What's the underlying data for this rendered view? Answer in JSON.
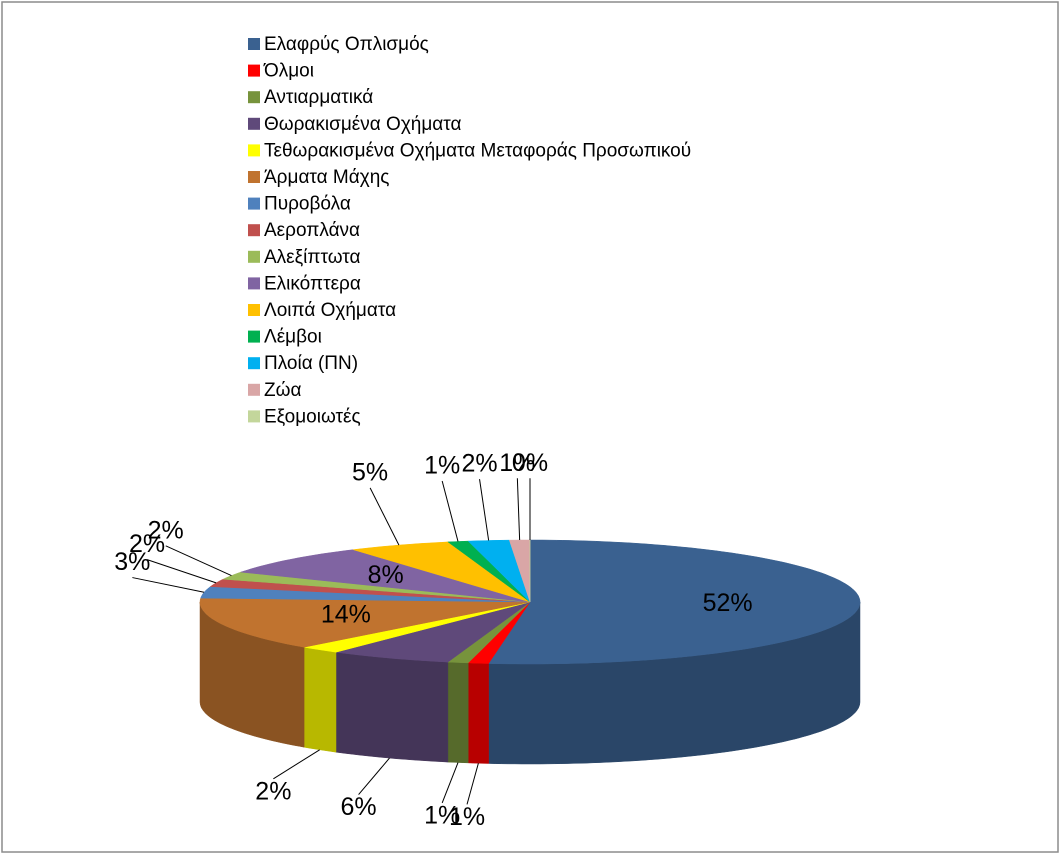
{
  "chart_data": {
    "type": "pie",
    "categories": [
      "Ελαφρύς Οπλισμός",
      "Όλμοι",
      "Αντιαρματικά",
      "Θωρακισμένα Οχήματα",
      "Τεθωρακισμένα Οχήματα Μεταφοράς Προσωπικού",
      "Άρματα Μάχης",
      "Πυροβόλα",
      "Αεροπλάνα",
      "Αλεξίπτωτα",
      "Ελικόπτερα",
      "Λοιπά Οχήματα",
      "Λέμβοι",
      "Πλοία (ΠΝ)",
      "Ζώα",
      "Εξομοιωτές"
    ],
    "values": [
      52,
      1,
      1,
      6,
      2,
      14,
      3,
      2,
      2,
      8,
      5,
      1,
      2,
      1,
      0
    ],
    "value_labels": [
      "52%",
      "1%",
      "1%",
      "6%",
      "2%",
      "14%",
      "3%",
      "2%",
      "2%",
      "8%",
      "5%",
      "1%",
      "2%",
      "1%",
      "0%"
    ],
    "colors": [
      "#3a6190",
      "#ff0000",
      "#77933c",
      "#5f497a",
      "#ffff00",
      "#c0732f",
      "#4f81bd",
      "#c0504d",
      "#9bbb59",
      "#8064a2",
      "#ffc000",
      "#00b050",
      "#00b0f0",
      "#d9a6a6",
      "#c3d69b"
    ],
    "legend": "top"
  }
}
